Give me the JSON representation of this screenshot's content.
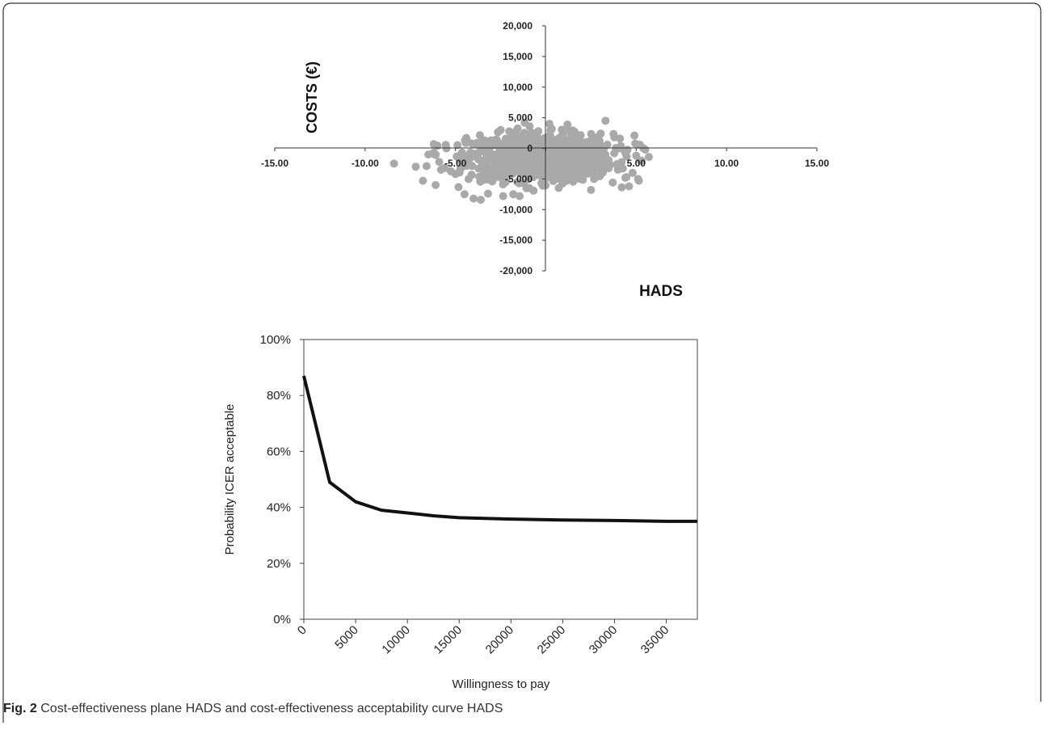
{
  "caption": {
    "label": "Fig. 2",
    "text": "Cost-effectiveness plane HADS and cost-effectiveness acceptability curve HADS"
  },
  "chart_data": [
    {
      "type": "scatter",
      "xlabel": "HADS",
      "ylabel": "COSTS (€)",
      "xlim": [
        -15,
        15
      ],
      "ylim": [
        -20000,
        20000
      ],
      "x_ticks": [
        -15,
        -10,
        -5,
        0,
        5,
        10,
        15
      ],
      "x_tick_labels": [
        "-15.00",
        "-10.00",
        "-5.00",
        "",
        "5.00",
        "10.00",
        "15.00"
      ],
      "y_ticks": [
        20000,
        15000,
        10000,
        5000,
        0,
        -5000,
        -10000,
        -15000,
        -20000
      ],
      "y_tick_labels": [
        "20,000",
        "15,000",
        "10,000",
        "5,000",
        "0",
        "-5,000",
        "-10,000",
        "-15,000",
        "-20,000"
      ],
      "point_color": "#a9a9a9",
      "cloud": {
        "x_mean": -0.3,
        "x_sd": 2.0,
        "y_mean": -1500,
        "y_sd": 1900,
        "n": 1000
      },
      "points": [
        [
          -8.4,
          -2500
        ],
        [
          -7.2,
          -3000
        ],
        [
          -6.5,
          -1000
        ],
        [
          -6.2,
          -700
        ],
        [
          -6.8,
          -5300
        ],
        [
          -6.1,
          -6000
        ],
        [
          -5.5,
          0
        ],
        [
          -5.8,
          -3500
        ],
        [
          -4.5,
          -7500
        ],
        [
          -4.0,
          -8200
        ],
        [
          -4.4,
          1700
        ],
        [
          -3.6,
          -8400
        ],
        [
          -3.2,
          -7400
        ],
        [
          -2.5,
          3000
        ],
        [
          -1.8,
          -7500
        ],
        [
          -0.9,
          3600
        ],
        [
          0.2,
          4000
        ],
        [
          1.2,
          3900
        ],
        [
          2.5,
          -6800
        ],
        [
          3.3,
          4500
        ],
        [
          3.7,
          -5600
        ],
        [
          4.1,
          1600
        ],
        [
          4.6,
          -6200
        ],
        [
          4.8,
          -4000
        ],
        [
          4.9,
          2100
        ],
        [
          5.0,
          -1200
        ],
        [
          5.1,
          -5000
        ],
        [
          5.3,
          -2000
        ],
        [
          5.5,
          -200
        ],
        [
          5.7,
          -1400
        ],
        [
          5.2,
          600
        ],
        [
          4.4,
          -4800
        ],
        [
          -5.0,
          -4200
        ],
        [
          -5.9,
          -2200
        ],
        [
          -6.6,
          -2900
        ]
      ]
    },
    {
      "type": "line",
      "xlabel": "Willingness to pay",
      "ylabel": "Probability ICER acceptable",
      "xlim": [
        0,
        38000
      ],
      "ylim": [
        0,
        100
      ],
      "x_ticks": [
        0,
        5000,
        10000,
        15000,
        20000,
        25000,
        30000,
        35000
      ],
      "x_tick_labels": [
        "0",
        "5000",
        "10000",
        "15000",
        "20000",
        "25000",
        "30000",
        "35000"
      ],
      "y_ticks": [
        0,
        20,
        40,
        60,
        80,
        100
      ],
      "y_tick_labels": [
        "0%",
        "20%",
        "40%",
        "60%",
        "80%",
        "100%"
      ],
      "line_color": "#111111",
      "x": [
        0,
        2500,
        5000,
        7500,
        10000,
        12500,
        15000,
        20000,
        25000,
        30000,
        35000,
        38000
      ],
      "y": [
        87,
        49,
        42,
        39,
        38,
        37,
        36.3,
        35.8,
        35.5,
        35.3,
        35.0,
        35.0
      ]
    }
  ]
}
